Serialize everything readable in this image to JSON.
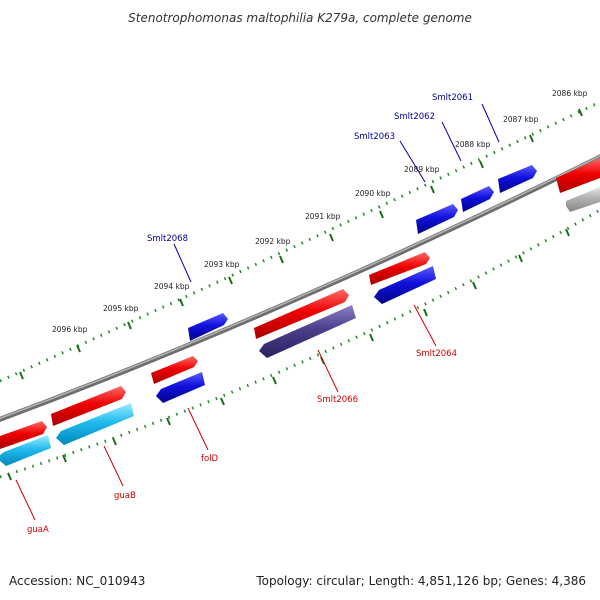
{
  "title": "Stenotrophomonas maltophilia K279a, complete genome",
  "accession": "Accession: NC_010943",
  "topology": "Topology: circular; Length: 4,851,126 bp; Genes: 4,386",
  "colors": {
    "backbone": "#8a8a8a",
    "forward_cds": "#ee0000",
    "reverse_cds_blue": "#1111dd",
    "reverse_cds_cyan": "#22bbee",
    "reverse_cds_purple": "#4a3f8a",
    "grey_feature": "#b0b0b0",
    "ticks": "#228b22",
    "blue_label": "#000099",
    "red_label": "#cc0000"
  },
  "ticks": [
    "2086 kbp",
    "2087 kbp",
    "2088 kbp",
    "2089 kbp",
    "2090 kbp",
    "2091 kbp",
    "2092 kbp",
    "2093 kbp",
    "2094 kbp",
    "2095 kbp",
    "2096 kbp"
  ],
  "gene_labels": {
    "smlt2061": "Smlt2061",
    "smlt2062": "Smlt2062",
    "smlt2063": "Smlt2063",
    "smlt2068": "Smlt2068",
    "smlt2064": "Smlt2064",
    "smlt2066": "Smlt2066",
    "folD": "folD",
    "guaB": "guaB",
    "guaA": "guaA"
  }
}
